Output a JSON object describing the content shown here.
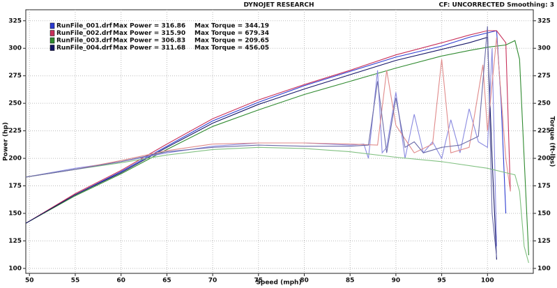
{
  "chart_data": {
    "type": "line",
    "title": "DYNOJET RESEARCH",
    "subtitle": "CF: UNCORRECTED   Smoothing: 3",
    "xlabel": "Speed (mph)",
    "ylabel": "Power (hp)",
    "y2label": "Torque (ft-lbs)",
    "xlim": [
      49.6,
      105
    ],
    "xticks": [
      50,
      55,
      60,
      65,
      70,
      75,
      80,
      85,
      90,
      95,
      100
    ],
    "ylim": [
      95.5,
      335
    ],
    "yticks": [
      100,
      125,
      150,
      175,
      200,
      225,
      250,
      275,
      300,
      325
    ],
    "y2lim": [
      95.5,
      335
    ],
    "y2ticks": [
      100,
      125,
      150,
      175,
      200,
      225,
      250,
      275,
      300,
      325
    ],
    "grid": true,
    "legend": [
      {
        "file": "RunFile_001.drf",
        "power": "Max Power = 316.86",
        "torque": "Max Torque = 344.19",
        "color": "#2c3bd0"
      },
      {
        "file": "RunFile_002.drf",
        "power": "Max Power = 315.90",
        "torque": "Max Torque = 679.34",
        "color": "#c8305a"
      },
      {
        "file": "RunFile_003.drf",
        "power": "Max Power = 306.83",
        "torque": "Max Torque = 209.65",
        "color": "#2f8a2f"
      },
      {
        "file": "RunFile_004.drf",
        "power": "Max Power = 311.68",
        "torque": "Max Torque = 456.05",
        "color": "#141466"
      }
    ],
    "series": [
      {
        "color": "#2c3bd0",
        "axis": "y",
        "x": [
          49.6,
          55,
          60,
          65,
          70,
          75,
          80,
          85,
          90,
          95,
          98,
          100,
          101,
          101.5,
          102
        ],
        "values": [
          141,
          167,
          188,
          211,
          234,
          251,
          266,
          279,
          292,
          302,
          310,
          314,
          316,
          250,
          150
        ]
      },
      {
        "color": "#c8305a",
        "axis": "y",
        "x": [
          49.6,
          55,
          60,
          65,
          70,
          75,
          80,
          85,
          90,
          95,
          98,
          100,
          101,
          102,
          102.5
        ],
        "values": [
          141,
          168,
          189,
          213,
          236,
          253,
          267,
          280,
          294,
          305,
          312,
          316,
          316,
          305,
          170
        ]
      },
      {
        "color": "#2f8a2f",
        "axis": "y",
        "x": [
          49.6,
          55,
          60,
          65,
          70,
          75,
          80,
          85,
          90,
          95,
          98,
          100,
          102,
          103,
          103.5,
          104,
          104.5
        ],
        "values": [
          141,
          166,
          186,
          208,
          229,
          244,
          258,
          270,
          282,
          293,
          298,
          301,
          303,
          307,
          290,
          200,
          112
        ]
      },
      {
        "color": "#141466",
        "axis": "y",
        "x": [
          49.6,
          55,
          60,
          65,
          70,
          75,
          80,
          85,
          90,
          95,
          98,
          100,
          100.5,
          101
        ],
        "values": [
          141,
          167,
          187,
          210,
          232,
          249,
          263,
          276,
          289,
          299,
          305,
          310,
          200,
          108
        ]
      },
      {
        "color": "#8a8ae0",
        "axis": "y2",
        "x": [
          49.6,
          55,
          60,
          65,
          70,
          75,
          80,
          85,
          86.5,
          87,
          88,
          88.5,
          89,
          90,
          91,
          92,
          93,
          94,
          95,
          96,
          97,
          98,
          99,
          100,
          100.5,
          101
        ],
        "values": [
          183,
          191,
          197,
          205,
          211,
          214,
          214,
          212,
          213,
          200,
          280,
          205,
          210,
          260,
          200,
          240,
          205,
          215,
          200,
          235,
          205,
          245,
          215,
          210,
          300,
          120
        ]
      },
      {
        "color": "#e08a8a",
        "axis": "y2",
        "x": [
          49.6,
          55,
          60,
          65,
          70,
          75,
          80,
          85,
          88,
          89,
          90,
          92,
          94,
          95,
          96,
          98,
          99.5,
          100,
          101,
          102,
          102.5
        ],
        "values": [
          183,
          190,
          198,
          207,
          213,
          214,
          214,
          213,
          212,
          280,
          230,
          205,
          213,
          290,
          205,
          210,
          285,
          225,
          310,
          200,
          170
        ]
      },
      {
        "color": "#80c080",
        "axis": "y2",
        "x": [
          49.6,
          55,
          60,
          65,
          70,
          75,
          80,
          85,
          90,
          95,
          100,
          102,
          103,
          103.5,
          104,
          104.5
        ],
        "values": [
          183,
          190,
          196,
          203,
          208,
          210,
          209,
          206,
          201,
          197,
          191,
          187,
          185,
          170,
          120,
          105
        ]
      },
      {
        "color": "#6a6aa8",
        "axis": "y2",
        "x": [
          49.6,
          55,
          60,
          65,
          70,
          75,
          80,
          85,
          87,
          88,
          89,
          90,
          91,
          92,
          93,
          95,
          97,
          99,
          100,
          100.5,
          101
        ],
        "values": [
          183,
          190,
          197,
          206,
          210,
          212,
          211,
          211,
          212,
          270,
          205,
          255,
          210,
          215,
          205,
          210,
          212,
          220,
          320,
          150,
          110
        ]
      }
    ]
  }
}
